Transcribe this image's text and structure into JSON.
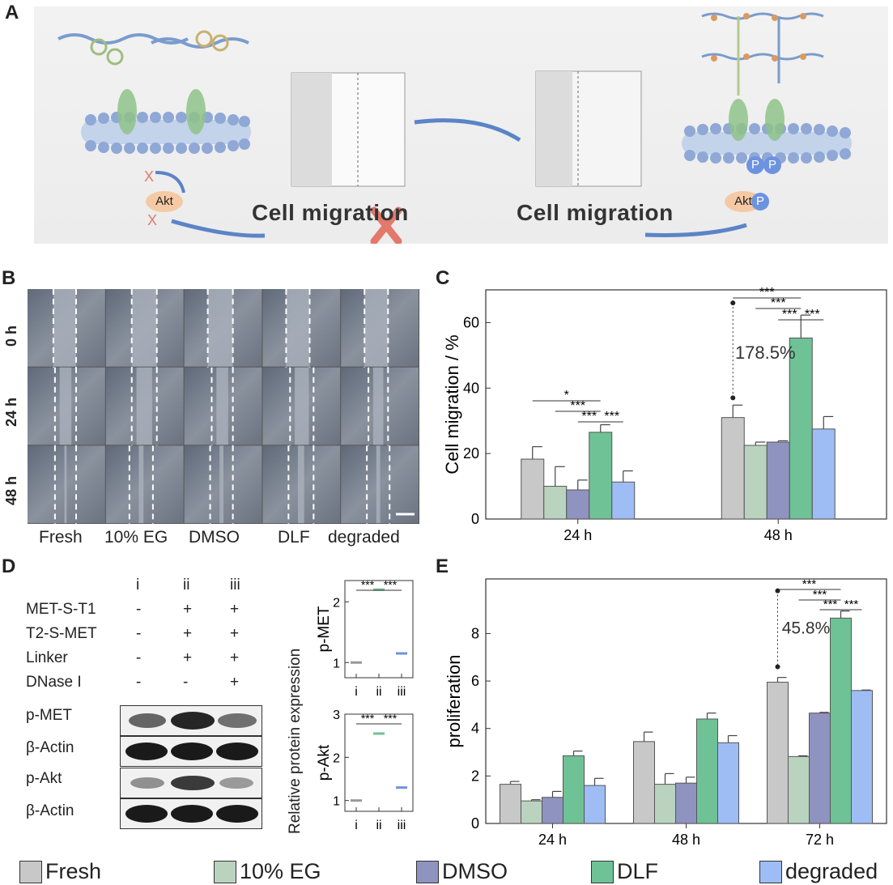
{
  "panels": {
    "A": {
      "letter": "A",
      "left_text": "Cell migration",
      "right_text": "Cell migration",
      "akt_left": "Akt",
      "akt_right": "Akt",
      "p_label": "P",
      "x_mark": "X"
    },
    "B": {
      "letter": "B",
      "row_labels": [
        "0 h",
        "24 h",
        "48 h"
      ],
      "col_labels": [
        "Fresh",
        "10% EG",
        "DMSO",
        "DLF",
        "degraded"
      ]
    },
    "C": {
      "letter": "C"
    },
    "D": {
      "letter": "D",
      "lanes": [
        "i",
        "ii",
        "iii"
      ],
      "conditions": [
        {
          "name": "MET-S-T1",
          "marks": [
            "-",
            "+",
            "+"
          ]
        },
        {
          "name": "T2-S-MET",
          "marks": [
            "-",
            "+",
            "+"
          ]
        },
        {
          "name": "Linker",
          "marks": [
            "-",
            "+",
            "+"
          ]
        },
        {
          "name": "DNase I",
          "marks": [
            "-",
            "-",
            "+"
          ]
        }
      ],
      "blots": [
        "p-MET",
        "β-Actin",
        "p-Akt",
        "β-Actin"
      ],
      "ylabel_shared": "Relative protein expression"
    },
    "E": {
      "letter": "E"
    }
  },
  "colors": {
    "Fresh": "#c8c8c8",
    "10% EG": "#b9d3bf",
    "DMSO": "#8f93c0",
    "DLF": "#6fc295",
    "degraded": "#9fbdf5"
  },
  "legend": [
    "Fresh",
    "10% EG",
    "DMSO",
    "DLF",
    "degraded"
  ],
  "chart_data": [
    {
      "id": "C",
      "type": "bar",
      "ylabel": "Cell migration / %",
      "ylim": [
        0,
        70
      ],
      "yticks": [
        0,
        20,
        40,
        60
      ],
      "categories": [
        "24 h",
        "48 h"
      ],
      "series": [
        {
          "name": "Fresh",
          "values": [
            18.3,
            31.0
          ],
          "errors": [
            3.8,
            3.8
          ]
        },
        {
          "name": "10% EG",
          "values": [
            10.0,
            22.5
          ],
          "errors": [
            6.0,
            1.0
          ]
        },
        {
          "name": "DMSO",
          "values": [
            8.9,
            23.5
          ],
          "errors": [
            3.0,
            0.4
          ]
        },
        {
          "name": "DLF",
          "values": [
            26.5,
            55.3
          ],
          "errors": [
            2.3,
            7.0
          ]
        },
        {
          "name": "degraded",
          "values": [
            11.3,
            27.5
          ],
          "errors": [
            3.4,
            3.8
          ]
        }
      ],
      "annotation": "178.5%",
      "significance": [
        {
          "group": 0,
          "from": 0,
          "to": 3,
          "label": "*"
        },
        {
          "group": 0,
          "from": 1,
          "to": 3,
          "label": "***"
        },
        {
          "group": 0,
          "from": 2,
          "to": 3,
          "label": "***"
        },
        {
          "group": 0,
          "from": 3,
          "to": 4,
          "label": "***"
        },
        {
          "group": 1,
          "from": 0,
          "to": 3,
          "label": "***"
        },
        {
          "group": 1,
          "from": 1,
          "to": 3,
          "label": "***"
        },
        {
          "group": 1,
          "from": 2,
          "to": 3,
          "label": "***"
        },
        {
          "group": 1,
          "from": 3,
          "to": 4,
          "label": "***"
        }
      ]
    },
    {
      "id": "D-pMET",
      "type": "scatter",
      "ylabel": "p-MET",
      "ylim": [
        0.75,
        2.35
      ],
      "yticks": [
        1,
        2
      ],
      "categories": [
        "i",
        "ii",
        "iii"
      ],
      "values": [
        1.0,
        2.2,
        1.15
      ],
      "significance": [
        "***",
        "***"
      ]
    },
    {
      "id": "D-pAkt",
      "type": "scatter",
      "ylabel": "p-Akt",
      "ylim": [
        0.75,
        3.0
      ],
      "yticks": [
        1,
        2,
        3
      ],
      "categories": [
        "i",
        "ii",
        "iii"
      ],
      "values": [
        1.0,
        2.55,
        1.3
      ],
      "significance": [
        "***",
        "***"
      ]
    },
    {
      "id": "E",
      "type": "bar",
      "ylabel": "proliferation",
      "ylim": [
        0,
        10.3
      ],
      "yticks": [
        0,
        2,
        4,
        6,
        8
      ],
      "categories": [
        "24 h",
        "48 h",
        "72 h"
      ],
      "series": [
        {
          "name": "Fresh",
          "values": [
            1.65,
            3.45,
            5.95
          ],
          "errors": [
            0.12,
            0.4,
            0.2
          ]
        },
        {
          "name": "10% EG",
          "values": [
            0.95,
            1.65,
            2.82
          ],
          "errors": [
            0.05,
            0.45,
            0.03
          ]
        },
        {
          "name": "DMSO",
          "values": [
            1.1,
            1.7,
            4.65
          ],
          "errors": [
            0.25,
            0.25,
            0.03
          ]
        },
        {
          "name": "DLF",
          "values": [
            2.85,
            4.4,
            8.65
          ],
          "errors": [
            0.2,
            0.25,
            0.3
          ]
        },
        {
          "name": "degraded",
          "values": [
            1.6,
            3.4,
            5.6
          ],
          "errors": [
            0.3,
            0.3,
            0.02
          ]
        }
      ],
      "annotation": "45.8%",
      "significance": [
        {
          "group": 2,
          "from": 0,
          "to": 3,
          "label": "***"
        },
        {
          "group": 2,
          "from": 1,
          "to": 3,
          "label": "***"
        },
        {
          "group": 2,
          "from": 2,
          "to": 3,
          "label": "***"
        },
        {
          "group": 2,
          "from": 3,
          "to": 4,
          "label": "***"
        }
      ]
    }
  ]
}
